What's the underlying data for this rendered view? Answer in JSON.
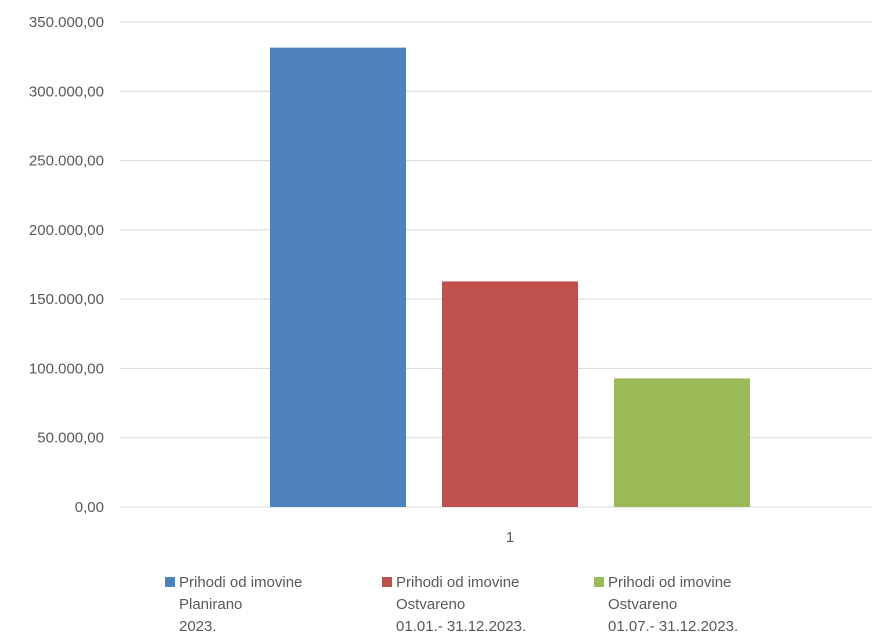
{
  "chart_data": {
    "type": "bar",
    "categories": [
      "1"
    ],
    "series": [
      {
        "name": "Prihodi od imovine Planirano 2023.",
        "values": [
          331500
        ],
        "color": "#4f81bd",
        "legend_lines": [
          "Prihodi od imovine",
          "Planirano",
          "2023."
        ]
      },
      {
        "name": "Prihodi od imovine Ostvareno 01.01.- 31.12.2023.",
        "values": [
          162800
        ],
        "color": "#c0504d",
        "legend_lines": [
          "Prihodi od imovine",
          "Ostvareno",
          "01.01.- 31.12.2023."
        ]
      },
      {
        "name": "Prihodi od imovine Ostvareno 01.07.- 31.12.2023.",
        "values": [
          92800
        ],
        "color": "#9bbb59",
        "legend_lines": [
          "Prihodi od imovine",
          "Ostvareno",
          "01.07.- 31.12.2023."
        ]
      }
    ],
    "yticks": [
      "0,00",
      "50.000,00",
      "100.000,00",
      "150.000,00",
      "200.000,00",
      "250.000,00",
      "300.000,00",
      "350.000,00"
    ],
    "ylim": [
      0,
      350000
    ],
    "title": "",
    "xlabel": "",
    "ylabel": "",
    "grid": true,
    "legend_position": "bottom",
    "gridline_color": "#d9d9d9"
  }
}
